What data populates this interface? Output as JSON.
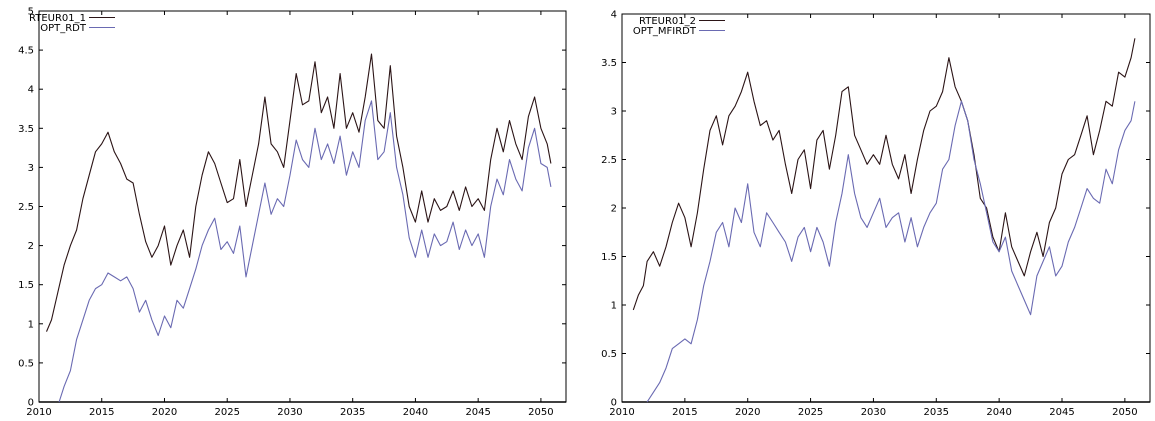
{
  "chart_data": [
    {
      "type": "line",
      "title": "",
      "xlabel": "",
      "ylabel": "",
      "xlim": [
        2010,
        2052
      ],
      "ylim": [
        0,
        5
      ],
      "x_ticks": [
        "2010",
        "2015",
        "2020",
        "2025",
        "2030",
        "2035",
        "2040",
        "2045",
        "2050"
      ],
      "y_ticks": [
        "0",
        "0.5",
        "1",
        "1.5",
        "2",
        "2.5",
        "3",
        "3.5",
        "4",
        "4.5",
        "5"
      ],
      "legend_position": "top-left",
      "grid": false,
      "series": [
        {
          "name": "RTEUR01_1",
          "color": "#2b1416",
          "x": [
            2010.6,
            2011.0,
            2011.5,
            2012.0,
            2012.5,
            2013.0,
            2013.5,
            2014.0,
            2014.5,
            2015.0,
            2015.5,
            2016.0,
            2016.5,
            2017.0,
            2017.5,
            2018.0,
            2018.5,
            2019.0,
            2019.5,
            2020.0,
            2020.5,
            2021.0,
            2021.5,
            2022.0,
            2022.5,
            2023.0,
            2023.5,
            2024.0,
            2024.5,
            2025.0,
            2025.5,
            2026.0,
            2026.5,
            2027.0,
            2027.5,
            2028.0,
            2028.5,
            2029.0,
            2029.5,
            2030.0,
            2030.5,
            2031.0,
            2031.5,
            2032.0,
            2032.5,
            2033.0,
            2033.5,
            2034.0,
            2034.5,
            2035.0,
            2035.5,
            2036.0,
            2036.5,
            2037.0,
            2037.5,
            2038.0,
            2038.5,
            2039.0,
            2039.5,
            2040.0,
            2040.5,
            2041.0,
            2041.5,
            2042.0,
            2042.5,
            2043.0,
            2043.5,
            2044.0,
            2044.5,
            2045.0,
            2045.5,
            2046.0,
            2046.5,
            2047.0,
            2047.5,
            2048.0,
            2048.5,
            2049.0,
            2049.5,
            2050.0,
            2050.5,
            2050.8
          ],
          "values": [
            0.9,
            1.05,
            1.4,
            1.75,
            2.0,
            2.2,
            2.6,
            2.9,
            3.2,
            3.3,
            3.45,
            3.2,
            3.05,
            2.85,
            2.8,
            2.4,
            2.05,
            1.85,
            2.0,
            2.25,
            1.75,
            2.0,
            2.2,
            1.85,
            2.5,
            2.9,
            3.2,
            3.05,
            2.8,
            2.55,
            2.6,
            3.1,
            2.5,
            2.9,
            3.3,
            3.9,
            3.3,
            3.2,
            3.0,
            3.6,
            4.2,
            3.8,
            3.85,
            4.35,
            3.7,
            3.9,
            3.5,
            4.2,
            3.5,
            3.7,
            3.45,
            3.9,
            4.45,
            3.6,
            3.5,
            4.3,
            3.4,
            3.0,
            2.5,
            2.3,
            2.7,
            2.3,
            2.6,
            2.45,
            2.5,
            2.7,
            2.45,
            2.75,
            2.5,
            2.6,
            2.45,
            3.1,
            3.5,
            3.2,
            3.6,
            3.3,
            3.1,
            3.65,
            3.9,
            3.5,
            3.3,
            3.05
          ]
        },
        {
          "name": "OPT_RDT",
          "color": "#6a6ab2",
          "x": [
            2011.6,
            2012.0,
            2012.5,
            2013.0,
            2013.5,
            2014.0,
            2014.5,
            2015.0,
            2015.5,
            2016.0,
            2016.5,
            2017.0,
            2017.5,
            2018.0,
            2018.5,
            2019.0,
            2019.5,
            2020.0,
            2020.5,
            2021.0,
            2021.5,
            2022.0,
            2022.5,
            2023.0,
            2023.5,
            2024.0,
            2024.5,
            2025.0,
            2025.5,
            2026.0,
            2026.5,
            2027.0,
            2027.5,
            2028.0,
            2028.5,
            2029.0,
            2029.5,
            2030.0,
            2030.5,
            2031.0,
            2031.5,
            2032.0,
            2032.5,
            2033.0,
            2033.5,
            2034.0,
            2034.5,
            2035.0,
            2035.5,
            2036.0,
            2036.5,
            2037.0,
            2037.5,
            2038.0,
            2038.5,
            2039.0,
            2039.5,
            2040.0,
            2040.5,
            2041.0,
            2041.5,
            2042.0,
            2042.5,
            2043.0,
            2043.5,
            2044.0,
            2044.5,
            2045.0,
            2045.5,
            2046.0,
            2046.5,
            2047.0,
            2047.5,
            2048.0,
            2048.5,
            2049.0,
            2049.5,
            2050.0,
            2050.5,
            2050.8
          ],
          "values": [
            0.0,
            0.2,
            0.4,
            0.8,
            1.05,
            1.3,
            1.45,
            1.5,
            1.65,
            1.6,
            1.55,
            1.6,
            1.45,
            1.15,
            1.3,
            1.05,
            0.85,
            1.1,
            0.95,
            1.3,
            1.2,
            1.45,
            1.7,
            2.0,
            2.2,
            2.35,
            1.95,
            2.05,
            1.9,
            2.25,
            1.6,
            2.0,
            2.4,
            2.8,
            2.4,
            2.6,
            2.5,
            2.9,
            3.35,
            3.1,
            3.0,
            3.5,
            3.1,
            3.3,
            3.05,
            3.4,
            2.9,
            3.2,
            3.0,
            3.6,
            3.85,
            3.1,
            3.2,
            3.7,
            3.0,
            2.65,
            2.1,
            1.85,
            2.2,
            1.85,
            2.15,
            2.0,
            2.05,
            2.3,
            1.95,
            2.2,
            2.0,
            2.15,
            1.85,
            2.5,
            2.85,
            2.65,
            3.1,
            2.85,
            2.7,
            3.25,
            3.5,
            3.05,
            3.0,
            2.75
          ]
        }
      ]
    },
    {
      "type": "line",
      "title": "",
      "xlabel": "",
      "ylabel": "",
      "xlim": [
        2010,
        2052
      ],
      "ylim": [
        0,
        4
      ],
      "x_ticks": [
        "2010",
        "2015",
        "2020",
        "2025",
        "2030",
        "2035",
        "2040",
        "2045",
        "2050"
      ],
      "y_ticks": [
        "0",
        "0.5",
        "1",
        "1.5",
        "2",
        "2.5",
        "3",
        "3.5",
        "4"
      ],
      "legend_position": "top-left",
      "grid": false,
      "series": [
        {
          "name": "RTEUR01_2",
          "color": "#2b1416",
          "x": [
            2010.9,
            2011.3,
            2011.7,
            2012.0,
            2012.5,
            2013.0,
            2013.5,
            2014.0,
            2014.5,
            2015.0,
            2015.5,
            2016.0,
            2016.5,
            2017.0,
            2017.5,
            2018.0,
            2018.5,
            2019.0,
            2019.5,
            2020.0,
            2020.5,
            2021.0,
            2021.5,
            2022.0,
            2022.5,
            2023.0,
            2023.5,
            2024.0,
            2024.5,
            2025.0,
            2025.5,
            2026.0,
            2026.5,
            2027.0,
            2027.5,
            2028.0,
            2028.5,
            2029.0,
            2029.5,
            2030.0,
            2030.5,
            2031.0,
            2031.5,
            2032.0,
            2032.5,
            2033.0,
            2033.5,
            2034.0,
            2034.5,
            2035.0,
            2035.5,
            2036.0,
            2036.5,
            2037.0,
            2037.5,
            2038.0,
            2038.5,
            2039.0,
            2039.5,
            2040.0,
            2040.5,
            2041.0,
            2041.5,
            2042.0,
            2042.5,
            2043.0,
            2043.5,
            2044.0,
            2044.5,
            2045.0,
            2045.5,
            2046.0,
            2046.5,
            2047.0,
            2047.5,
            2048.0,
            2048.5,
            2049.0,
            2049.5,
            2050.0,
            2050.5,
            2050.8
          ],
          "values": [
            0.95,
            1.1,
            1.2,
            1.45,
            1.55,
            1.4,
            1.6,
            1.85,
            2.05,
            1.9,
            1.6,
            1.95,
            2.4,
            2.8,
            2.95,
            2.65,
            2.95,
            3.05,
            3.2,
            3.4,
            3.1,
            2.85,
            2.9,
            2.7,
            2.8,
            2.45,
            2.15,
            2.5,
            2.6,
            2.2,
            2.7,
            2.8,
            2.4,
            2.75,
            3.2,
            3.25,
            2.75,
            2.6,
            2.45,
            2.55,
            2.45,
            2.75,
            2.45,
            2.3,
            2.55,
            2.15,
            2.5,
            2.8,
            3.0,
            3.05,
            3.2,
            3.55,
            3.25,
            3.1,
            2.9,
            2.55,
            2.1,
            2.0,
            1.7,
            1.55,
            1.95,
            1.6,
            1.45,
            1.3,
            1.55,
            1.75,
            1.5,
            1.85,
            2.0,
            2.35,
            2.5,
            2.55,
            2.75,
            2.95,
            2.55,
            2.8,
            3.1,
            3.05,
            3.4,
            3.35,
            3.55,
            3.75
          ]
        },
        {
          "name": "OPT_MFIRDT",
          "color": "#6a6ab2",
          "x": [
            2012.0,
            2012.5,
            2013.0,
            2013.5,
            2014.0,
            2014.5,
            2015.0,
            2015.5,
            2016.0,
            2016.5,
            2017.0,
            2017.5,
            2018.0,
            2018.5,
            2019.0,
            2019.5,
            2020.0,
            2020.5,
            2021.0,
            2021.5,
            2022.0,
            2022.5,
            2023.0,
            2023.5,
            2024.0,
            2024.5,
            2025.0,
            2025.5,
            2026.0,
            2026.5,
            2027.0,
            2027.5,
            2028.0,
            2028.5,
            2029.0,
            2029.5,
            2030.0,
            2030.5,
            2031.0,
            2031.5,
            2032.0,
            2032.5,
            2033.0,
            2033.5,
            2034.0,
            2034.5,
            2035.0,
            2035.5,
            2036.0,
            2036.5,
            2037.0,
            2037.5,
            2038.0,
            2038.5,
            2039.0,
            2039.5,
            2040.0,
            2040.5,
            2041.0,
            2041.5,
            2042.0,
            2042.5,
            2043.0,
            2043.5,
            2044.0,
            2044.5,
            2045.0,
            2045.5,
            2046.0,
            2046.5,
            2047.0,
            2047.5,
            2048.0,
            2048.5,
            2049.0,
            2049.5,
            2050.0,
            2050.5,
            2050.8
          ],
          "values": [
            0.0,
            0.1,
            0.2,
            0.35,
            0.55,
            0.6,
            0.65,
            0.6,
            0.85,
            1.2,
            1.45,
            1.75,
            1.85,
            1.6,
            2.0,
            1.85,
            2.25,
            1.75,
            1.6,
            1.95,
            1.85,
            1.75,
            1.65,
            1.45,
            1.7,
            1.8,
            1.55,
            1.8,
            1.65,
            1.4,
            1.85,
            2.15,
            2.55,
            2.15,
            1.9,
            1.8,
            1.95,
            2.1,
            1.8,
            1.9,
            1.95,
            1.65,
            1.9,
            1.6,
            1.8,
            1.95,
            2.05,
            2.4,
            2.5,
            2.85,
            3.1,
            2.9,
            2.5,
            2.25,
            1.95,
            1.65,
            1.55,
            1.7,
            1.35,
            1.2,
            1.05,
            0.9,
            1.3,
            1.45,
            1.6,
            1.3,
            1.4,
            1.65,
            1.8,
            2.0,
            2.2,
            2.1,
            2.05,
            2.4,
            2.25,
            2.6,
            2.8,
            2.9,
            3.1
          ]
        }
      ]
    }
  ]
}
